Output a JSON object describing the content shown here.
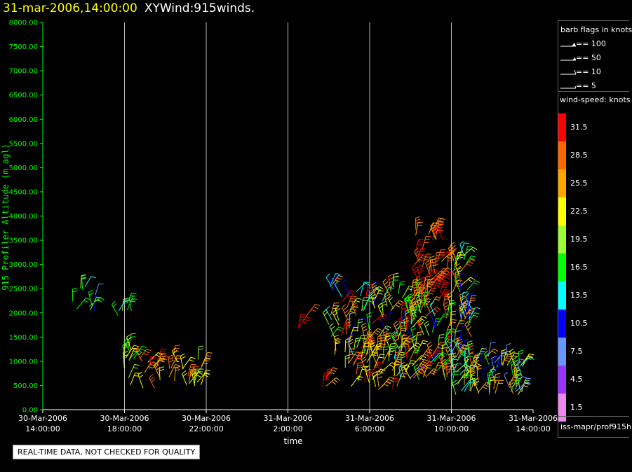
{
  "header": {
    "date_time": "31-mar-2006,14:00:00",
    "product": "XYWind:915winds."
  },
  "legend": {
    "barb_title": "barb flags in knots",
    "barb_rows": [
      {
        "label": "== 100",
        "icon": "flag-barb-icon"
      },
      {
        "label": "== 50",
        "icon": "pennant-barb-icon"
      },
      {
        "label": "== 10",
        "icon": "full-barb-icon"
      },
      {
        "label": "== 5",
        "icon": "half-barb-icon"
      }
    ],
    "speed_title": "wind-speed: knots",
    "speed_scale": [
      {
        "label": "31.5",
        "color": "#ff0000"
      },
      {
        "label": "28.5",
        "color": "#ff6600"
      },
      {
        "label": "25.5",
        "color": "#ffa500"
      },
      {
        "label": "22.5",
        "color": "#ffff00"
      },
      {
        "label": "19.5",
        "color": "#99ff33"
      },
      {
        "label": "16.5",
        "color": "#00ff00"
      },
      {
        "label": "13.5",
        "color": "#00ffff"
      },
      {
        "label": "10.5",
        "color": "#0000ff"
      },
      {
        "label": "7.5",
        "color": "#6699ff"
      },
      {
        "label": "4.5",
        "color": "#9933ff"
      },
      {
        "label": "1.5",
        "color": "#ee88ee"
      }
    ],
    "source": "iss-mapr/prof915h"
  },
  "footer": {
    "quality_notice": "REAL-TIME DATA, NOT CHECKED FOR QUALITY"
  },
  "chart_data": {
    "type": "scatter",
    "ylabel": "915 Profiler Altitude (m agl)",
    "xlabel": "time",
    "ylim": [
      0,
      8000
    ],
    "y_ticks": [
      "0.00",
      "500.00",
      "1000.00",
      "1500.00",
      "2000.00",
      "2500.00",
      "3000.00",
      "3500.00",
      "4000.00",
      "4500.00",
      "5000.00",
      "5500.00",
      "6000.00",
      "6500.00",
      "7000.00",
      "7500.00",
      "8000.00"
    ],
    "xlim_hours": [
      0,
      24
    ],
    "x_ticks": [
      {
        "date": "30-Mar-2006",
        "time": "14:00:00",
        "hour": 0
      },
      {
        "date": "30-Mar-2006",
        "time": "18:00:00",
        "hour": 4
      },
      {
        "date": "30-Mar-2006",
        "time": "22:00:00",
        "hour": 8
      },
      {
        "date": "31-Mar-2006",
        "time": "2:00:00",
        "hour": 12
      },
      {
        "date": "31-Mar-2006",
        "time": "6:00:00",
        "hour": 16
      },
      {
        "date": "31-Mar-2006",
        "time": "10:00:00",
        "hour": 20
      },
      {
        "date": "31-Mar-2006",
        "time": "14:00:00",
        "hour": 24
      }
    ],
    "grid": "vertical",
    "clusters": [
      {
        "t": [
          1.3,
          2.8
        ],
        "alt": [
          1950,
          2550
        ],
        "speed": [
          7,
          20
        ],
        "n": 10
      },
      {
        "t": [
          3.3,
          4.8
        ],
        "alt": [
          1900,
          2250
        ],
        "speed": [
          10,
          20
        ],
        "n": 6
      },
      {
        "t": [
          3.8,
          4.6
        ],
        "alt": [
          500,
          1300
        ],
        "speed": [
          14,
          26
        ],
        "n": 12
      },
      {
        "t": [
          4.6,
          7.8
        ],
        "alt": [
          350,
          1050
        ],
        "speed": [
          20,
          31
        ],
        "n": 34
      },
      {
        "t": [
          12.5,
          12.9
        ],
        "alt": [
          1650,
          2000
        ],
        "speed": [
          27,
          31
        ],
        "n": 3
      },
      {
        "t": [
          13.4,
          14.1
        ],
        "alt": [
          450,
          750
        ],
        "speed": [
          26,
          31
        ],
        "n": 4
      },
      {
        "t": [
          14.0,
          18.5
        ],
        "alt": [
          1000,
          2600
        ],
        "speed": [
          10,
          31
        ],
        "n": 110
      },
      {
        "t": [
          14.8,
          17.5
        ],
        "alt": [
          400,
          1300
        ],
        "speed": [
          18,
          31
        ],
        "n": 45
      },
      {
        "t": [
          17.5,
          21.0
        ],
        "alt": [
          600,
          2200
        ],
        "speed": [
          10,
          31
        ],
        "n": 110
      },
      {
        "t": [
          18.2,
          19.6
        ],
        "alt": [
          2200,
          3800
        ],
        "speed": [
          24,
          34
        ],
        "n": 45
      },
      {
        "t": [
          19.8,
          20.8
        ],
        "alt": [
          2400,
          3200
        ],
        "speed": [
          14,
          31
        ],
        "n": 20
      },
      {
        "t": [
          20.4,
          21.1
        ],
        "alt": [
          1700,
          2600
        ],
        "speed": [
          8,
          14
        ],
        "n": 10
      },
      {
        "t": [
          20.0,
          23.5
        ],
        "alt": [
          300,
          1100
        ],
        "speed": [
          6,
          26
        ],
        "n": 70
      }
    ]
  }
}
